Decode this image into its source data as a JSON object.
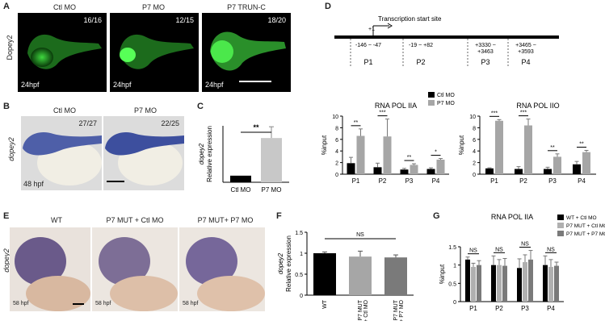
{
  "panels": {
    "A": {
      "label": "A",
      "ylabel": "Dopey2",
      "images": [
        {
          "title": "Ctl MO",
          "count": "16/16",
          "stage": "24hpf"
        },
        {
          "title": "P7 MO",
          "count": "12/15",
          "stage": "24hpf"
        },
        {
          "title": "P7 TRUN-C",
          "count": "18/20",
          "stage": "24hpf"
        }
      ]
    },
    "B": {
      "label": "B",
      "ylabel": "dopey2",
      "images": [
        {
          "title": "Ctl MO",
          "count": "27/27",
          "stage": "48 hpf"
        },
        {
          "title": "P7 MO",
          "count": "22/25",
          "stage": ""
        }
      ]
    },
    "C": {
      "label": "C"
    },
    "D": {
      "label": "D",
      "tss_label": "Transcription start site",
      "tss_marker": "+1",
      "regions": [
        {
          "range": "-146  ~  -47",
          "name": "P1"
        },
        {
          "range": "-19  ~  +82",
          "name": "P2"
        },
        {
          "range": "+3330 ~\n+3463",
          "name": "P3"
        },
        {
          "range": "+3465 ~\n+3593",
          "name": "P4"
        }
      ]
    },
    "E": {
      "label": "E",
      "ylabel": "dopey2",
      "images": [
        {
          "title": "WT",
          "stage": "58 hpf"
        },
        {
          "title": "P7 MUT + Ctl MO",
          "stage": "58 hpf"
        },
        {
          "title": "P7 MUT+ P7 MO",
          "stage": "58 hpf"
        }
      ]
    },
    "F": {
      "label": "F"
    },
    "G": {
      "label": "G"
    }
  },
  "chart_data": [
    {
      "id": "C",
      "type": "bar",
      "categories": [
        "Ctl MO",
        "P7 MO"
      ],
      "values": [
        0.7,
        4.7
      ],
      "errors": [
        0,
        1.2
      ],
      "ylabel": "dopey2\nRelative expression",
      "significance": "**",
      "colors": [
        "#000000",
        "#c8c8c8"
      ]
    },
    {
      "id": "D-IIA",
      "type": "bar",
      "title": "RNA POL IIA",
      "ylabel": "%input",
      "ylim": [
        0,
        10
      ],
      "yticks": [
        0,
        2,
        4,
        6,
        8,
        10
      ],
      "categories": [
        "P1",
        "P2",
        "P3",
        "P4"
      ],
      "series": [
        {
          "name": "Ctl  MO",
          "values": [
            1.9,
            1.2,
            0.8,
            0.9
          ],
          "errors": [
            1.0,
            0.7,
            0.2,
            0.2
          ],
          "color": "#000000"
        },
        {
          "name": "P7 MO",
          "values": [
            6.6,
            6.5,
            1.6,
            2.5
          ],
          "errors": [
            1.2,
            3.0,
            0.2,
            0.2
          ],
          "color": "#a6a6a6"
        }
      ],
      "significance": [
        "**",
        "***",
        "**",
        "*"
      ]
    },
    {
      "id": "D-IIO",
      "type": "bar",
      "title": "RNA POL IIO",
      "ylabel": "%input",
      "ylim": [
        0,
        10
      ],
      "yticks": [
        0,
        2,
        4,
        6,
        8,
        10
      ],
      "categories": [
        "P1",
        "P2",
        "P3",
        "P4"
      ],
      "series": [
        {
          "name": "Ctl  MO",
          "values": [
            1.0,
            0.9,
            0.9,
            1.7
          ],
          "errors": [
            0.1,
            0.4,
            0.3,
            0.5
          ],
          "color": "#000000"
        },
        {
          "name": "P7 MO",
          "values": [
            9.2,
            8.4,
            3.0,
            3.8
          ],
          "errors": [
            0.2,
            1.1,
            0.5,
            0.3
          ],
          "color": "#a6a6a6"
        }
      ],
      "significance": [
        "***",
        "***",
        "**",
        "**"
      ]
    },
    {
      "id": "F",
      "type": "bar",
      "ylabel": "dopey2\nRelative expression",
      "ylim": [
        0,
        1.5
      ],
      "yticks": [
        "0",
        "0.5",
        "1",
        "1.5"
      ],
      "categories": [
        "WT",
        "P7 MUT\n+ Ctl MO",
        "P7 MUT\n+ P7 MO"
      ],
      "values": [
        1.0,
        0.92,
        0.9
      ],
      "errors": [
        0.03,
        0.13,
        0.06
      ],
      "colors": [
        "#000000",
        "#a6a6a6",
        "#7a7a7a"
      ],
      "significance": "NS"
    },
    {
      "id": "G",
      "type": "bar",
      "title": "RNA POL IIA",
      "ylabel": "%input",
      "ylim": [
        0,
        1.5
      ],
      "yticks": [
        "0",
        "0.5",
        "1",
        "1.5"
      ],
      "categories": [
        "P1",
        "P2",
        "P3",
        "P4"
      ],
      "series": [
        {
          "name": "WT + Ctl MO",
          "values": [
            1.15,
            1.0,
            0.92,
            1.0
          ],
          "errors": [
            0.07,
            0.25,
            0.25,
            0.25
          ],
          "color": "#000000"
        },
        {
          "name": "P7 MUT + Ctl MO",
          "values": [
            0.95,
            1.0,
            1.08,
            0.95
          ],
          "errors": [
            0.1,
            0.15,
            0.2,
            0.2
          ],
          "color": "#b0b0b0"
        },
        {
          "name": "P7 MUT + P7 MO",
          "values": [
            1.0,
            0.98,
            1.15,
            0.98
          ],
          "errors": [
            0.12,
            0.2,
            0.25,
            0.1
          ],
          "color": "#7a7a7a"
        }
      ],
      "significance": [
        "NS",
        "NS",
        "NS",
        "NS"
      ]
    }
  ]
}
